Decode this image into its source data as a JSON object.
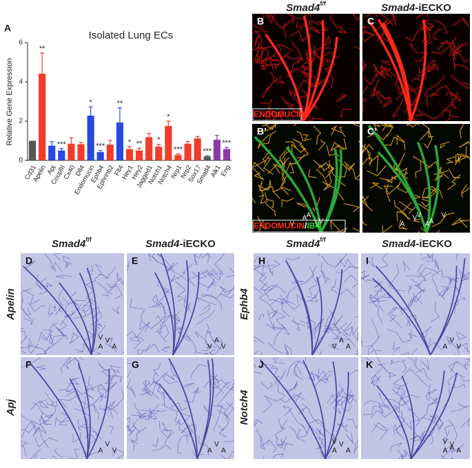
{
  "chart_data": {
    "type": "bar",
    "panel_label": "A",
    "title": "Isolated Lung ECs",
    "y_label": "Relative Gene Expression",
    "categories": [
      "Cd31",
      "Apelin",
      "Apj",
      "CoupfII",
      "Cx40",
      "Dll4",
      "Endomucin",
      "Ephb4",
      "Ephrinb2",
      "Flt4",
      "Hey1",
      "Hey2",
      "Jagged1",
      "Notch1",
      "Notch4",
      "Nrp1",
      "Nrp2",
      "Sox17",
      "Smad4",
      "Alk1",
      "Eng"
    ],
    "values": [
      1.0,
      4.42,
      0.75,
      0.5,
      0.85,
      0.82,
      2.28,
      0.42,
      0.8,
      1.93,
      0.57,
      0.5,
      1.18,
      0.7,
      1.75,
      0.27,
      0.85,
      1.12,
      0.2,
      1.05,
      0.58
    ],
    "errors": [
      null,
      1.05,
      0.2,
      0.1,
      0.3,
      0.1,
      0.45,
      0.08,
      0.22,
      0.75,
      0.12,
      0.12,
      0.2,
      0.12,
      0.25,
      0.06,
      0.12,
      0.1,
      0.04,
      0.22,
      0.08
    ],
    "significance": [
      null,
      "**",
      null,
      "***",
      null,
      null,
      "*",
      "***",
      null,
      "**",
      "*",
      "**",
      null,
      "*",
      "*",
      "***",
      null,
      null,
      "***",
      null,
      "***"
    ],
    "colors": [
      "#555555",
      "#f03c28",
      "#2848e0",
      "#2848e0",
      "#f03c28",
      "#f03c28",
      "#2848e0",
      "#2848e0",
      "#f03c28",
      "#2848e0",
      "#f03c28",
      "#f03c28",
      "#f03c28",
      "#f03c28",
      "#f03c28",
      "#f03c28",
      "#f03c28",
      "#f03c28",
      "#555555",
      "#8a3aa8",
      "#8a3aa8"
    ],
    "ylim": [
      0,
      6
    ],
    "yticks": [
      0,
      2,
      4,
      6
    ]
  },
  "figure": {
    "top_headers": [
      {
        "gene": "Smad4",
        "sup": "f/f"
      },
      {
        "gene": "Smad4",
        "suffix": "-iECKO"
      }
    ],
    "top_panels": [
      {
        "label": "B",
        "stain": "ENDOMUCIN",
        "marks": []
      },
      {
        "label": "C",
        "marks": []
      },
      {
        "label": "B’",
        "stain": "ENDOMUCIN",
        "separator": "/",
        "stain_2": "IB4",
        "marks": [
          "V",
          "A",
          "V",
          "A",
          "V"
        ]
      },
      {
        "label": "C’",
        "marks": [
          "A",
          "V",
          "A",
          "V",
          "A",
          "V"
        ]
      }
    ],
    "bottom_headers": [
      {
        "gene": "Smad4",
        "sup": "f/f"
      },
      {
        "gene": "Smad4",
        "suffix": "-iECKO"
      },
      {
        "gene": "Smad4",
        "sup": "f/f"
      },
      {
        "gene": "Smad4",
        "suffix": "-iECKO"
      }
    ],
    "row_labels": [
      "Apelin",
      "Apj",
      "Ephb4",
      "Notch4"
    ],
    "bottom_panels": [
      {
        "label": "D",
        "marks": [
          "A",
          "V",
          "A",
          "V"
        ]
      },
      {
        "label": "E",
        "marks": [
          "V",
          "A",
          "V"
        ]
      },
      {
        "label": "F",
        "marks": [
          "A",
          "V",
          "V"
        ]
      },
      {
        "label": "G",
        "marks": [
          "A",
          "V",
          "A"
        ]
      },
      {
        "label": "H",
        "marks": [
          "V",
          "A",
          "A"
        ]
      },
      {
        "label": "I",
        "marks": [
          "A",
          "V",
          "V"
        ]
      },
      {
        "label": "J",
        "marks": [
          "A",
          "V",
          "A",
          "V"
        ]
      },
      {
        "label": "K",
        "marks": [
          "A",
          "V",
          "A",
          "V",
          "A"
        ]
      }
    ]
  }
}
